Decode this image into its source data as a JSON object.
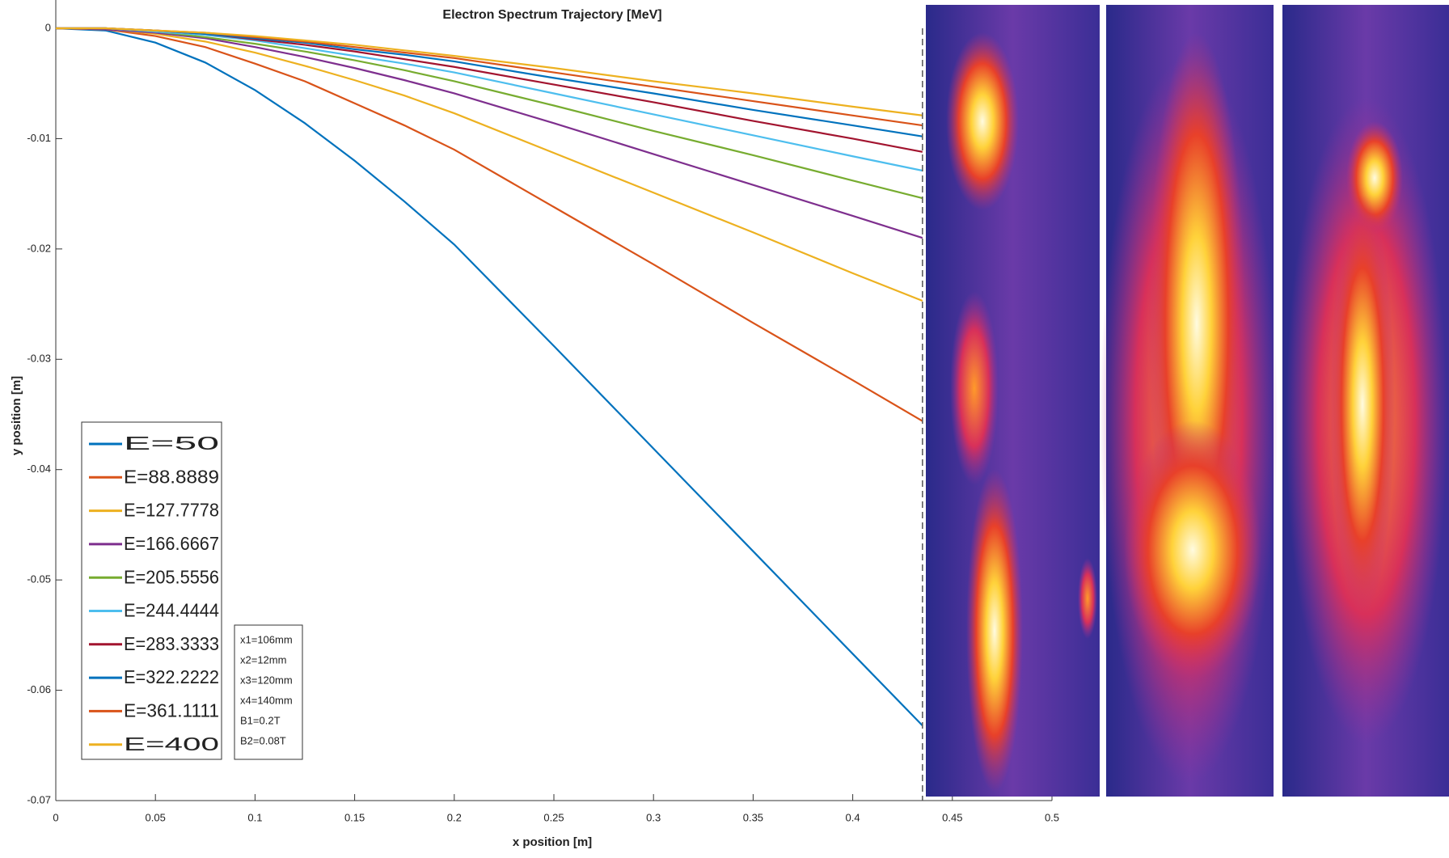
{
  "chart_data": {
    "type": "line",
    "title": "Electron Spectrum Trajectory [MeV]",
    "x_label": "x position [m]",
    "y_label": "y position [m]",
    "x": [
      0,
      0.025,
      0.05,
      0.075,
      0.1,
      0.125,
      0.15,
      0.175,
      0.2,
      0.25,
      0.3,
      0.35,
      0.4,
      0.435
    ],
    "series": [
      {
        "name": "E=50",
        "color": "#0072BD",
        "values": [
          0,
          -0.0002,
          -0.0013,
          -0.0031,
          -0.0056,
          -0.0086,
          -0.012,
          -0.0157,
          -0.0196,
          -0.0288,
          -0.0381,
          -0.0474,
          -0.0567,
          -0.0632
        ]
      },
      {
        "name": "E=88.8889",
        "color": "#D95319",
        "values": [
          0,
          -0.0001,
          -0.0007,
          -0.0017,
          -0.0032,
          -0.0048,
          -0.0068,
          -0.0088,
          -0.011,
          -0.0162,
          -0.0214,
          -0.0267,
          -0.0319,
          -0.0356
        ]
      },
      {
        "name": "E=127.7778",
        "color": "#EDB120",
        "values": [
          0,
          -0.0001,
          -0.0005,
          -0.0012,
          -0.0022,
          -0.0034,
          -0.0047,
          -0.0061,
          -0.0077,
          -0.0113,
          -0.0149,
          -0.0185,
          -0.0222,
          -0.0247
        ]
      },
      {
        "name": "E=166.6667",
        "color": "#7E2F8E",
        "values": [
          0,
          -0.0001,
          -0.0004,
          -0.0009,
          -0.0017,
          -0.0026,
          -0.0036,
          -0.0047,
          -0.0059,
          -0.0086,
          -0.0114,
          -0.0142,
          -0.017,
          -0.019
        ]
      },
      {
        "name": "E=205.5556",
        "color": "#77AC30",
        "values": [
          0,
          0,
          -0.0003,
          -0.0008,
          -0.0014,
          -0.0021,
          -0.0029,
          -0.0038,
          -0.0048,
          -0.007,
          -0.0093,
          -0.0115,
          -0.0138,
          -0.0154
        ]
      },
      {
        "name": "E=244.4444",
        "color": "#4DBEEE",
        "values": [
          0,
          0,
          -0.0003,
          -0.0006,
          -0.0011,
          -0.0018,
          -0.0025,
          -0.0032,
          -0.004,
          -0.0059,
          -0.0078,
          -0.0097,
          -0.0116,
          -0.0129
        ]
      },
      {
        "name": "E=283.3333",
        "color": "#A2142F",
        "values": [
          0,
          0,
          -0.0002,
          -0.0005,
          -0.001,
          -0.0015,
          -0.0021,
          -0.0028,
          -0.0035,
          -0.0051,
          -0.0067,
          -0.0084,
          -0.01,
          -0.0112
        ]
      },
      {
        "name": "E=322.2222",
        "color": "#0072BD",
        "values": [
          0,
          0,
          -0.0002,
          -0.0005,
          -0.0009,
          -0.0013,
          -0.0019,
          -0.0024,
          -0.003,
          -0.0045,
          -0.0059,
          -0.0074,
          -0.0088,
          -0.0098
        ]
      },
      {
        "name": "E=361.1111",
        "color": "#D95319",
        "values": [
          0,
          0,
          -0.0002,
          -0.0004,
          -0.0008,
          -0.0012,
          -0.0017,
          -0.0022,
          -0.0027,
          -0.004,
          -0.0053,
          -0.0066,
          -0.0079,
          -0.0088
        ]
      },
      {
        "name": "E=400",
        "color": "#EDB120",
        "values": [
          0,
          0,
          -0.0002,
          -0.0004,
          -0.0007,
          -0.0011,
          -0.0015,
          -0.002,
          -0.0025,
          -0.0036,
          -0.0048,
          -0.0059,
          -0.0071,
          -0.0079
        ]
      }
    ],
    "xlim": [
      0,
      0.5
    ],
    "xticks": [
      0,
      0.05,
      0.1,
      0.15,
      0.2,
      0.25,
      0.3,
      0.35,
      0.4,
      0.45,
      0.5
    ],
    "ylim": [
      -0.07,
      0
    ],
    "yticks": [
      0,
      -0.01,
      -0.02,
      -0.03,
      -0.04,
      -0.05,
      -0.06,
      -0.07
    ],
    "grid": false,
    "legend": "lower left",
    "vline_x": 0.435,
    "annotations": [
      "x1=106mm",
      "x2=12mm",
      "x3=120mm",
      "x4=140mm",
      "B1=0.2T",
      "B2=0.08T"
    ]
  }
}
